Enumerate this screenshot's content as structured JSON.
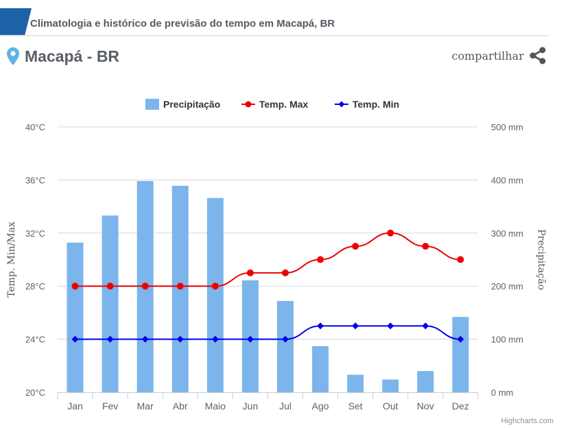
{
  "header": {
    "title": "Climatologia e histórico de previsão do tempo em Macapá, BR"
  },
  "location": {
    "name": "Macapá - BR"
  },
  "share": {
    "label": "compartilhar"
  },
  "colors": {
    "brand": "#1d62a8",
    "pin": "#5fb3e4",
    "precip": "#7cb5ec",
    "tmax": "#ee0000",
    "tmin": "#0000ee"
  },
  "chart_data": {
    "type": "bar",
    "categories": [
      "Jan",
      "Fev",
      "Mar",
      "Abr",
      "Maio",
      "Jun",
      "Jul",
      "Ago",
      "Set",
      "Out",
      "Nov",
      "Dez"
    ],
    "series": [
      {
        "name": "Precipitação",
        "type": "bar",
        "axis": "right",
        "values": [
          282,
          333,
          398,
          389,
          366,
          211,
          172,
          87,
          33,
          24,
          40,
          142
        ]
      },
      {
        "name": "Temp. Max",
        "type": "line",
        "axis": "left",
        "values": [
          28,
          28,
          28,
          28,
          28,
          29,
          29,
          30,
          31,
          32,
          31,
          30
        ]
      },
      {
        "name": "Temp. Min",
        "type": "line",
        "axis": "left",
        "values": [
          24,
          24,
          24,
          24,
          24,
          24,
          24,
          25,
          25,
          25,
          25,
          24
        ]
      }
    ],
    "y_left": {
      "label": "Temp. Min/Max",
      "min": 20,
      "max": 40,
      "ticks": [
        "20°C",
        "24°C",
        "28°C",
        "32°C",
        "36°C",
        "40°C"
      ]
    },
    "y_right": {
      "label": "Precipitação",
      "min": 0,
      "max": 500,
      "ticks": [
        "0 mm",
        "100 mm",
        "200 mm",
        "300 mm",
        "400 mm",
        "500 mm"
      ]
    },
    "legend_position": "top-center",
    "credits": "Highcharts.com"
  }
}
